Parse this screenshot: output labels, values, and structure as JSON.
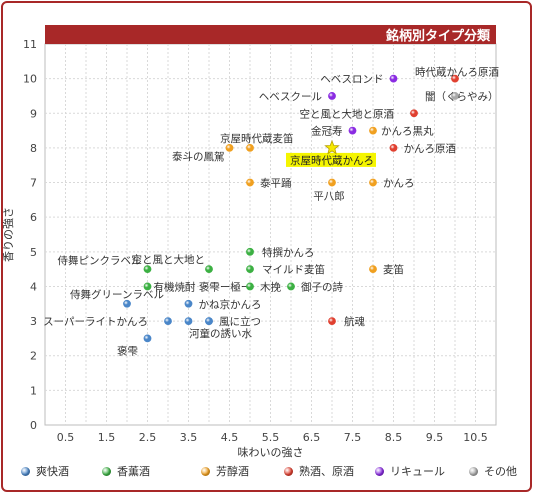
{
  "chart_data": {
    "type": "scatter",
    "title": "銘柄別タイプ分類",
    "xlabel": "味わいの強さ",
    "ylabel": "香りの強さ",
    "xlim": [
      0,
      11
    ],
    "ylim": [
      0,
      11
    ],
    "xticks": [
      "0.5",
      "1",
      "1.5",
      "2",
      "2.5",
      "3",
      "3.5",
      "4",
      "4.5",
      "5",
      "5.5",
      "6",
      "6.5",
      "7",
      "7.5",
      "8",
      "8.5",
      "9",
      "9.5",
      "10",
      "10.5"
    ],
    "yticks": [
      "0",
      "1",
      "2",
      "3",
      "4",
      "5",
      "6",
      "7",
      "8",
      "9",
      "10",
      "11"
    ],
    "grid": true,
    "legend_position": "bottom",
    "categories": [
      {
        "name": "爽快酒",
        "color": "#4a86c8"
      },
      {
        "name": "香薫酒",
        "color": "#3cb043"
      },
      {
        "name": "芳醇酒",
        "color": "#f0a020"
      },
      {
        "name": "熟酒、原酒",
        "color": "#e04030"
      },
      {
        "name": "リキュール",
        "color": "#8a2be2"
      },
      {
        "name": "その他",
        "color": "#a8a8a8"
      }
    ],
    "points": [
      {
        "label": "侍舞ピンクラベル",
        "x": 2.5,
        "y": 4.5,
        "cat": 1
      },
      {
        "label": "有機焼酎 褒雫ー極ー",
        "x": 2.5,
        "y": 4.0,
        "cat": 1
      },
      {
        "label": "空と風と大地と",
        "x": 4.0,
        "y": 4.5,
        "cat": 1
      },
      {
        "label": "特撰かんろ",
        "x": 5.0,
        "y": 5.0,
        "cat": 1
      },
      {
        "label": "マイルド麦笛",
        "x": 5.0,
        "y": 4.5,
        "cat": 1
      },
      {
        "label": "木挽",
        "x": 5.0,
        "y": 4.0,
        "cat": 1
      },
      {
        "label": "御子の詩",
        "x": 6.0,
        "y": 4.0,
        "cat": 1
      },
      {
        "label": "侍舞グリーンラベル",
        "x": 2.0,
        "y": 3.5,
        "cat": 0
      },
      {
        "label": "かね京かんろ",
        "x": 3.5,
        "y": 3.5,
        "cat": 0
      },
      {
        "label": "スーパーライトかんろ",
        "x": 3.0,
        "y": 3.0,
        "cat": 0
      },
      {
        "label": "",
        "x": 3.5,
        "y": 3.0,
        "cat": 0
      },
      {
        "label": "風に立つ",
        "x": 4.0,
        "y": 3.0,
        "cat": 0
      },
      {
        "label": "河童の誘い水",
        "x": 4.0,
        "y": 3.0,
        "cat": 0
      },
      {
        "label": "褒雫",
        "x": 2.5,
        "y": 2.5,
        "cat": 0
      },
      {
        "label": "京屋時代蔵麦笛",
        "x": 5.0,
        "y": 8.0,
        "cat": 2
      },
      {
        "label": "泰斗の鳳駕",
        "x": 4.5,
        "y": 8.0,
        "cat": 2
      },
      {
        "label": "泰平踊",
        "x": 5.0,
        "y": 7.0,
        "cat": 2
      },
      {
        "label": "平八郎",
        "x": 7.0,
        "y": 7.0,
        "cat": 2
      },
      {
        "label": "かんろ",
        "x": 8.0,
        "y": 7.0,
        "cat": 2
      },
      {
        "label": "かんろ黒丸",
        "x": 8.0,
        "y": 8.5,
        "cat": 2
      },
      {
        "label": "麦笛",
        "x": 8.0,
        "y": 4.5,
        "cat": 2
      },
      {
        "label": "かんろ原酒",
        "x": 8.5,
        "y": 8.0,
        "cat": 3
      },
      {
        "label": "空と風と大地と原酒",
        "x": 9.0,
        "y": 9.0,
        "cat": 3
      },
      {
        "label": "時代蔵かんろ原酒",
        "x": 10.0,
        "y": 10.0,
        "cat": 3
      },
      {
        "label": "航魂",
        "x": 7.0,
        "y": 3.0,
        "cat": 3
      },
      {
        "label": "ヘベスロンド",
        "x": 8.5,
        "y": 10.0,
        "cat": 4
      },
      {
        "label": "ヘベスクール",
        "x": 7.0,
        "y": 9.5,
        "cat": 4
      },
      {
        "label": "金冠寿",
        "x": 7.5,
        "y": 8.5,
        "cat": 4
      },
      {
        "label": "闇（くらやみ）",
        "x": 10.0,
        "y": 9.5,
        "cat": 5
      }
    ],
    "highlight": {
      "label": "京屋時代蔵かんろ",
      "x": 7.0,
      "y": 8.0,
      "color": "#f5f500"
    }
  }
}
